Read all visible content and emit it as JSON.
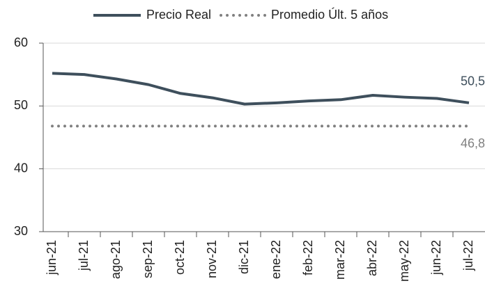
{
  "chart_data": {
    "type": "line",
    "categories": [
      "jun-21",
      "jul-21",
      "ago-21",
      "sep-21",
      "oct-21",
      "nov-21",
      "dic-21",
      "ene-22",
      "feb-22",
      "mar-22",
      "abr-22",
      "may-22",
      "jun-22",
      "jul-22"
    ],
    "series": [
      {
        "name": "Precio Real",
        "color": "#3e4f5c",
        "style": "solid",
        "values": [
          55.2,
          55.0,
          54.3,
          53.4,
          52.0,
          51.3,
          50.3,
          50.5,
          50.8,
          51.0,
          51.7,
          51.4,
          51.2,
          50.5
        ],
        "value_labels": [
          null,
          null,
          null,
          null,
          null,
          null,
          null,
          null,
          null,
          null,
          null,
          null,
          null,
          "50,5"
        ]
      },
      {
        "name": "Promedio Últ. 5 años",
        "color": "#808080",
        "style": "dotted",
        "values": [
          46.8,
          46.8,
          46.8,
          46.8,
          46.8,
          46.8,
          46.8,
          46.8,
          46.8,
          46.8,
          46.8,
          46.8,
          46.8,
          46.8
        ],
        "value_labels": [
          null,
          null,
          null,
          null,
          null,
          null,
          null,
          null,
          null,
          null,
          null,
          null,
          null,
          "46,8"
        ]
      }
    ],
    "ylim": [
      30,
      60
    ],
    "yticks": [
      30,
      40,
      50,
      60
    ],
    "grid": true,
    "legend": "top"
  }
}
